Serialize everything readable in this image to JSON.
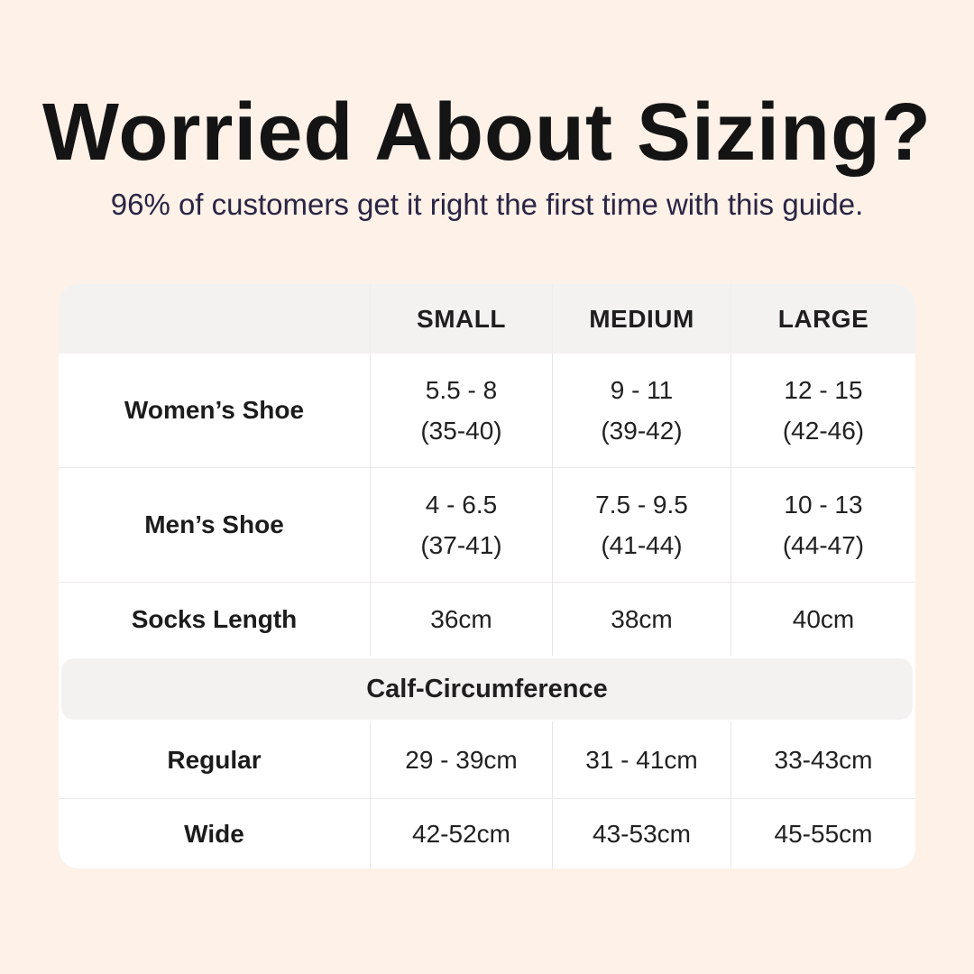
{
  "colors": {
    "background": "#fdf1e8",
    "card": "#ffffff",
    "band_gray": "#f4f2f1",
    "divider": "#ebe9e6",
    "title_text": "#141414",
    "subtitle_text": "#2a2444",
    "table_text": "#212121"
  },
  "chart_data": {
    "type": "table",
    "title": "Worried About Sizing?",
    "subtitle": "96% of customers get it right the first time with this guide.",
    "columns": [
      "",
      "SMALL",
      "MEDIUM",
      "LARGE"
    ],
    "body_rows": [
      {
        "label": "Women’s Shoe",
        "small": "5.5 - 8\n(35-40)",
        "medium": "9 - 11\n(39-42)",
        "large": "12 - 15\n(42-46)"
      },
      {
        "label": "Men’s Shoe",
        "small": "4 - 6.5\n(37-41)",
        "medium": "7.5 - 9.5\n(41-44)",
        "large": "10 - 13\n(44-47)"
      },
      {
        "label": "Socks Length",
        "small": "36cm",
        "medium": "38cm",
        "large": "40cm"
      }
    ],
    "section_header": "Calf-Circumference",
    "section_rows": [
      {
        "label": "Regular",
        "small": "29 - 39cm",
        "medium": "31 - 41cm",
        "large": "33-43cm"
      },
      {
        "label": "Wide",
        "small": "42-52cm",
        "medium": "43-53cm",
        "large": "45-55cm"
      }
    ],
    "layout": {
      "grid": "off",
      "header_background": "gray",
      "section_band": "rounded-gray"
    }
  }
}
